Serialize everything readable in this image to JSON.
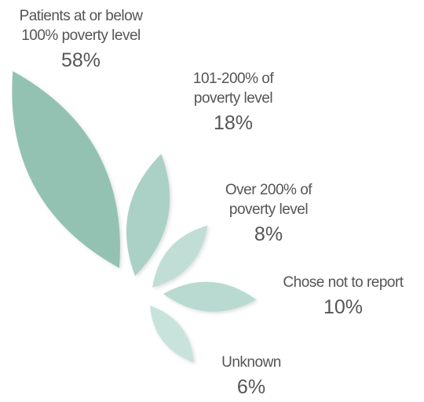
{
  "chart_data": {
    "type": "leaf",
    "categories": [
      "Patients at or below\n100% poverty level",
      "101-200% of\npoverty level",
      "Over 200% of\npoverty level",
      "Chose not to report",
      "Unknown"
    ],
    "values": [
      58,
      18,
      8,
      10,
      6
    ],
    "value_labels": [
      "58%",
      "18%",
      "8%",
      "10%",
      "6%"
    ],
    "colors": [
      "#93c2b3",
      "#abd1c6",
      "#c1ded6",
      "#b9dad1",
      "#c8e3dc"
    ]
  }
}
